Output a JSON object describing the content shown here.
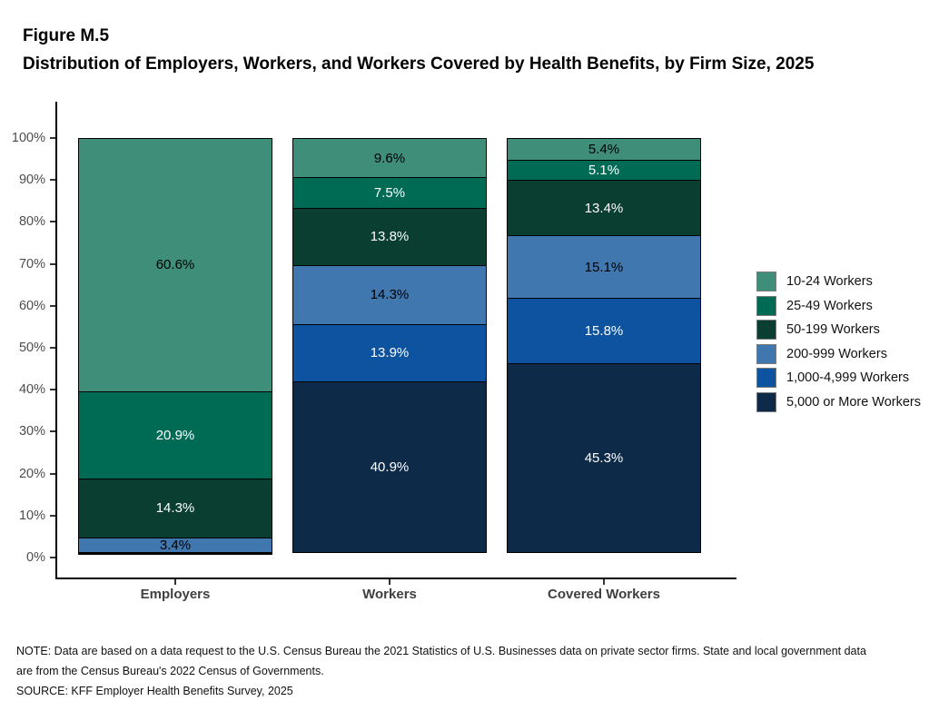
{
  "figure": {
    "label": "Figure M.5",
    "title": "Distribution of Employers, Workers, and Workers Covered by Health Benefits, by Firm Size, 2025"
  },
  "footnotes": {
    "note": "NOTE: Data are based on a data request to the U.S. Census Bureau the 2021 Statistics of U.S. Businesses data on private sector firms. State and local government data are from the Census Bureau's 2022 Census of Governments.",
    "source": "SOURCE: KFF Employer Health Benefits Survey, 2025"
  },
  "chart_data": {
    "type": "bar",
    "stacked": true,
    "orientation": "vertical",
    "title": "Distribution of Employers, Workers, and Workers Covered by Health Benefits, by Firm Size, 2025",
    "xlabel": "",
    "ylabel": "",
    "ylim": [
      0,
      100
    ],
    "grid": false,
    "legend_position": "right",
    "y_ticks": [
      "0%",
      "10%",
      "20%",
      "30%",
      "40%",
      "50%",
      "60%",
      "70%",
      "80%",
      "90%",
      "100%"
    ],
    "categories": [
      "Employers",
      "Workers",
      "Covered Workers"
    ],
    "series": [
      {
        "name": "10-24 Workers",
        "color": "#3e8e79",
        "values": [
          60.6,
          9.6,
          5.4
        ],
        "labels": [
          "60.6%",
          "9.6%",
          "5.4%"
        ]
      },
      {
        "name": "25-49 Workers",
        "color": "#006b55",
        "values": [
          20.9,
          7.5,
          5.1
        ],
        "labels": [
          "20.9%",
          "7.5%",
          "5.1%"
        ]
      },
      {
        "name": "50-199 Workers",
        "color": "#0a3e30",
        "values": [
          14.3,
          13.8,
          13.4
        ],
        "labels": [
          "14.3%",
          "13.8%",
          "13.4%"
        ]
      },
      {
        "name": "200-999 Workers",
        "color": "#4077af",
        "values": [
          3.4,
          14.3,
          15.1
        ],
        "labels": [
          "3.4%",
          "14.3%",
          "15.1%"
        ]
      },
      {
        "name": "1,000-4,999 Workers",
        "color": "#0e53a0",
        "values": [
          0.5,
          13.9,
          15.8
        ],
        "labels": [
          "",
          "13.9%",
          "15.8%"
        ]
      },
      {
        "name": "5,000 or More Workers",
        "color": "#0d2a49",
        "values": [
          0.3,
          40.9,
          45.3
        ],
        "labels": [
          "",
          "40.9%",
          "45.3%"
        ]
      }
    ]
  }
}
